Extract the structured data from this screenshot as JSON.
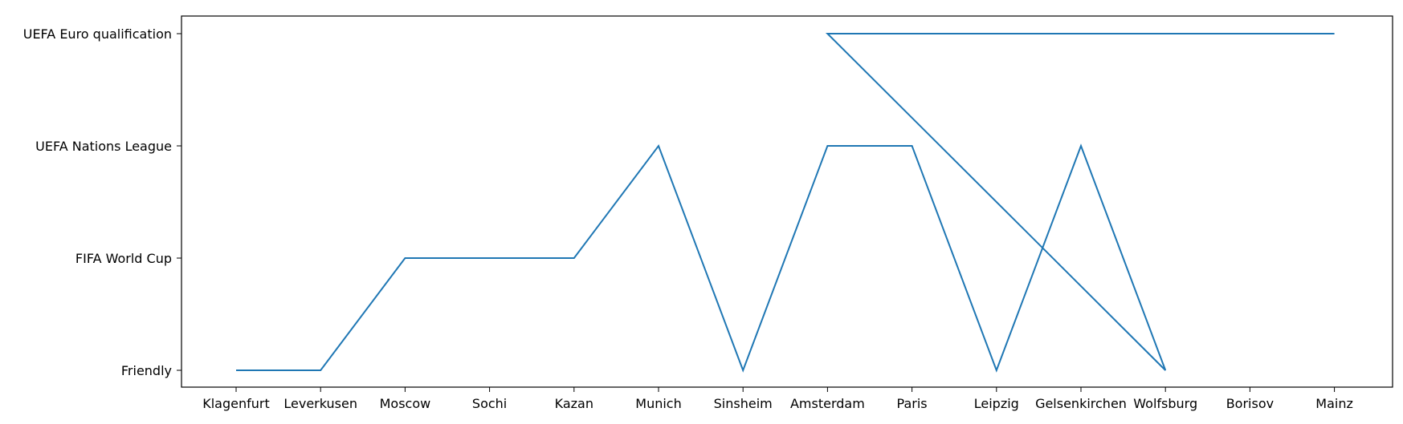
{
  "chart_data": {
    "type": "line",
    "x_categories": [
      "Klagenfurt",
      "Leverkusen",
      "Moscow",
      "Sochi",
      "Kazan",
      "Munich",
      "Sinsheim",
      "Amsterdam",
      "Paris",
      "Leipzig",
      "Gelsenkirchen",
      "Wolfsburg",
      "Borisov",
      "Mainz"
    ],
    "y_categories": [
      "Friendly",
      "FIFA World Cup",
      "UEFA Nations League",
      "UEFA Euro qualification"
    ],
    "series": [
      {
        "color": "#1f77b4",
        "points": [
          {
            "x": "Klagenfurt",
            "y": "Friendly"
          },
          {
            "x": "Leverkusen",
            "y": "Friendly"
          },
          {
            "x": "Moscow",
            "y": "FIFA World Cup"
          },
          {
            "x": "Sochi",
            "y": "FIFA World Cup"
          },
          {
            "x": "Kazan",
            "y": "FIFA World Cup"
          },
          {
            "x": "Munich",
            "y": "UEFA Nations League"
          },
          {
            "x": "Sinsheim",
            "y": "Friendly"
          },
          {
            "x": "Amsterdam",
            "y": "UEFA Nations League"
          },
          {
            "x": "Paris",
            "y": "UEFA Nations League"
          },
          {
            "x": "Leipzig",
            "y": "Friendly"
          },
          {
            "x": "Gelsenkirchen",
            "y": "UEFA Nations League"
          },
          {
            "x": "Wolfsburg",
            "y": "Friendly"
          },
          {
            "x": "Amsterdam",
            "y": "UEFA Euro qualification"
          },
          {
            "x": "Borisov",
            "y": "UEFA Euro qualification"
          },
          {
            "x": "Mainz",
            "y": "UEFA Euro qualification"
          }
        ]
      }
    ],
    "grid": false,
    "title": "",
    "xlabel": "",
    "ylabel": ""
  }
}
